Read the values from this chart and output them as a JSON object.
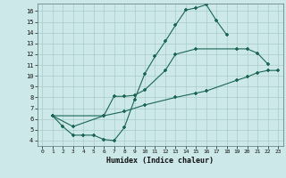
{
  "xlabel": "Humidex (Indice chaleur)",
  "background_color": "#cce8e8",
  "grid_color": "#aacccc",
  "line_color": "#1a6655",
  "xlim": [
    -0.5,
    23.5
  ],
  "ylim": [
    3.5,
    16.7
  ],
  "xticks": [
    0,
    1,
    2,
    3,
    4,
    5,
    6,
    7,
    8,
    9,
    10,
    11,
    12,
    13,
    14,
    15,
    16,
    17,
    18,
    19,
    20,
    21,
    22,
    23
  ],
  "yticks": [
    4,
    5,
    6,
    7,
    8,
    9,
    10,
    11,
    12,
    13,
    14,
    15,
    16
  ],
  "line1_x": [
    1,
    2,
    3,
    4,
    5,
    6,
    7,
    8,
    9,
    10,
    11,
    12,
    13,
    14,
    15,
    16,
    17,
    18
  ],
  "line1_y": [
    6.3,
    5.3,
    4.5,
    4.5,
    4.5,
    4.1,
    4.0,
    5.2,
    7.8,
    10.2,
    11.8,
    13.2,
    14.7,
    16.1,
    16.3,
    16.6,
    15.1,
    13.8
  ],
  "line2_x": [
    1,
    3,
    6,
    7,
    8,
    9,
    10,
    12,
    13,
    15,
    19,
    20,
    21,
    22
  ],
  "line2_y": [
    6.3,
    5.3,
    6.3,
    8.1,
    8.1,
    8.2,
    8.7,
    10.5,
    12.0,
    12.5,
    12.5,
    12.5,
    12.1,
    11.1
  ],
  "line3_x": [
    1,
    6,
    8,
    10,
    13,
    15,
    16,
    19,
    20,
    21,
    22,
    23
  ],
  "line3_y": [
    6.3,
    6.3,
    6.7,
    7.3,
    8.0,
    8.4,
    8.6,
    9.6,
    9.9,
    10.3,
    10.5,
    10.5
  ]
}
